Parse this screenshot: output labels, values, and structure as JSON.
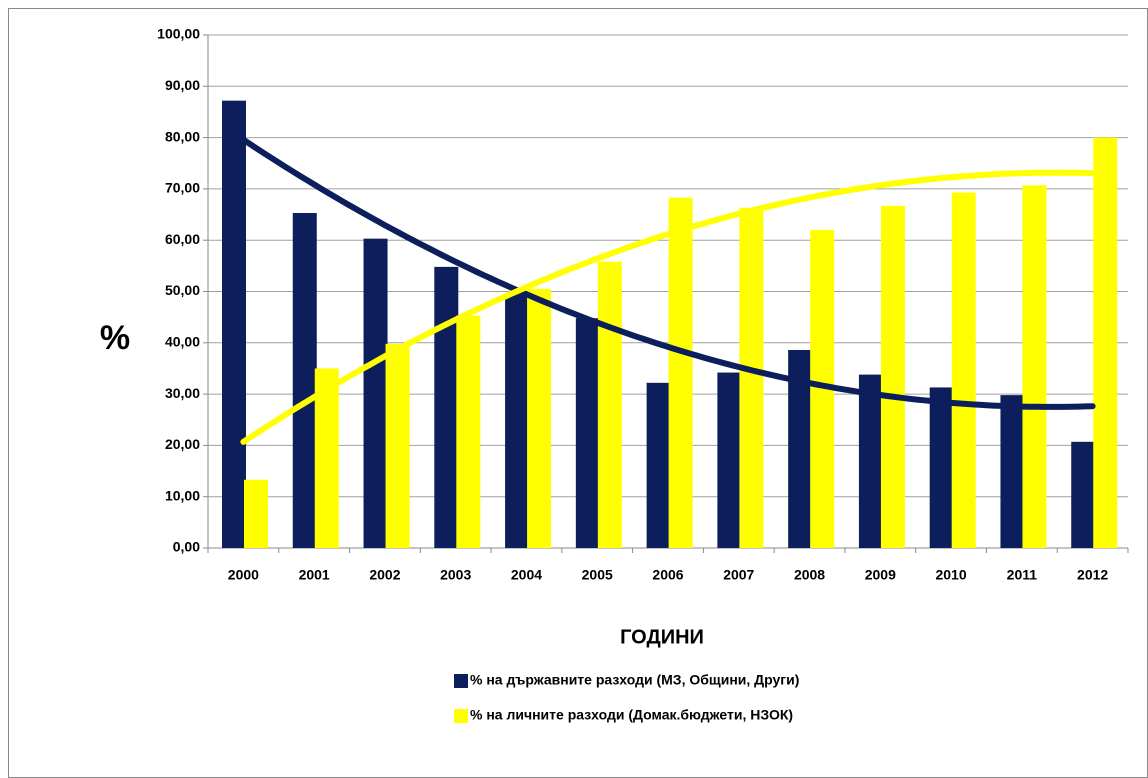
{
  "chart_data": {
    "type": "bar",
    "y_label": "%",
    "x_label": "ГОДИНИ",
    "categories": [
      "2000",
      "2001",
      "2002",
      "2003",
      "2004",
      "2005",
      "2006",
      "2007",
      "2008",
      "2009",
      "2010",
      "2011",
      "2012"
    ],
    "series": [
      {
        "name": "% на държавните разходи (МЗ, Общини, Други)",
        "color": "#0c1f5c",
        "trendline": 2,
        "values": [
          87.2,
          65.3,
          60.3,
          54.8,
          49.5,
          44.8,
          32.2,
          34.2,
          38.6,
          33.8,
          31.3,
          29.8,
          20.7
        ]
      },
      {
        "name": "% на личните разходи (Домак.бюджети, НЗОК)",
        "color": "#ffff00",
        "trendline": 2,
        "values": [
          13.3,
          35.0,
          39.8,
          45.3,
          50.5,
          55.8,
          68.3,
          66.3,
          62.0,
          66.7,
          69.3,
          70.7,
          80.0
        ]
      }
    ],
    "ylim": [
      0,
      100
    ],
    "yticks": [
      {
        "value": 0,
        "label": "0,00"
      },
      {
        "value": 10,
        "label": "10,00"
      },
      {
        "value": 20,
        "label": "20,00"
      },
      {
        "value": 30,
        "label": "30,00"
      },
      {
        "value": 40,
        "label": "40,00"
      },
      {
        "value": 50,
        "label": "50,00"
      },
      {
        "value": 60,
        "label": "60,00"
      },
      {
        "value": 70,
        "label": "70,00"
      },
      {
        "value": 80,
        "label": "80,00"
      },
      {
        "value": 90,
        "label": "90,00"
      },
      {
        "value": 100,
        "label": "100,00"
      }
    ],
    "grid": true
  }
}
